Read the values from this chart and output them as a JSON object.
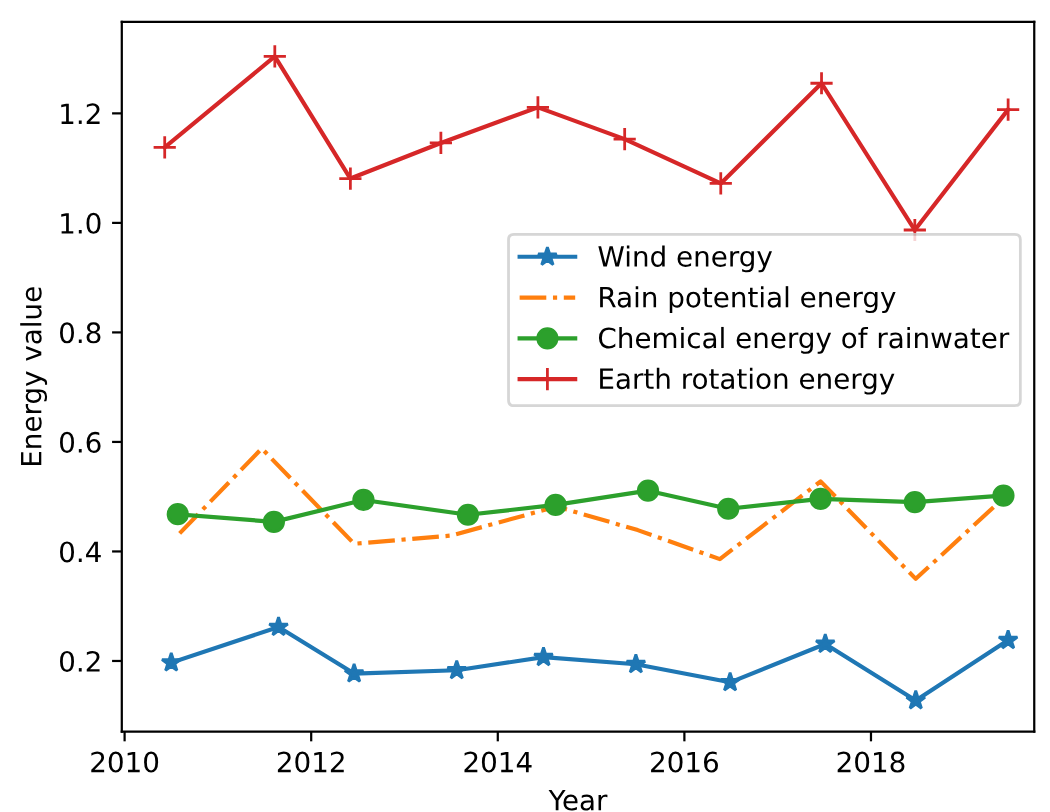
{
  "chart_data": {
    "type": "line",
    "xlabel": "Year",
    "ylabel": "Energy value",
    "xlim": [
      2009.97,
      2019.75
    ],
    "ylim": [
      0.071,
      1.367
    ],
    "xticks": [
      2010,
      2012,
      2014,
      2016,
      2018
    ],
    "yticks": [
      {
        "value": 0.2,
        "label": "0.2"
      },
      {
        "value": 0.4,
        "label": "0.4"
      },
      {
        "value": 0.6,
        "label": "0.6"
      },
      {
        "value": 0.8,
        "label": "0.8"
      },
      {
        "value": 1.0,
        "label": "1.0"
      },
      {
        "value": 1.2,
        "label": "1.2"
      }
    ],
    "grid": false,
    "legend": "right",
    "series": [
      {
        "name": "Wind energy",
        "color": "#1f77b4",
        "marker": "star",
        "line_style": "solid",
        "x": [
          2010.5,
          2011.65,
          2012.46,
          2013.56,
          2014.49,
          2015.48,
          2016.49,
          2017.51,
          2018.48,
          2019.47
        ],
        "values": [
          0.197,
          0.262,
          0.177,
          0.183,
          0.207,
          0.194,
          0.161,
          0.231,
          0.128,
          0.238
        ]
      },
      {
        "name": "Rain potential energy",
        "color": "#ff7f0e",
        "marker": "none",
        "line_style": "dashdot",
        "x": [
          2010.59,
          2011.47,
          2012.46,
          2013.5,
          2014.63,
          2015.5,
          2016.38,
          2017.46,
          2018.48,
          2019.41
        ],
        "values": [
          0.433,
          0.588,
          0.414,
          0.429,
          0.482,
          0.439,
          0.386,
          0.528,
          0.35,
          0.496
        ]
      },
      {
        "name": "Chemical energy of rainwater",
        "color": "#2ca02c",
        "marker": "circle",
        "line_style": "solid",
        "x": [
          2010.57,
          2011.6,
          2012.56,
          2013.68,
          2014.62,
          2015.61,
          2016.47,
          2017.46,
          2018.47,
          2019.42
        ],
        "values": [
          0.468,
          0.454,
          0.494,
          0.467,
          0.485,
          0.511,
          0.478,
          0.496,
          0.49,
          0.502
        ]
      },
      {
        "name": "Earth rotation energy",
        "color": "#d62728",
        "marker": "cross",
        "line_style": "solid",
        "x": [
          2010.43,
          2011.61,
          2012.42,
          2013.39,
          2014.43,
          2015.36,
          2016.39,
          2017.47,
          2018.47,
          2019.47
        ],
        "values": [
          1.138,
          1.304,
          1.081,
          1.146,
          1.211,
          1.153,
          1.072,
          1.255,
          0.987,
          1.207
        ]
      }
    ]
  }
}
